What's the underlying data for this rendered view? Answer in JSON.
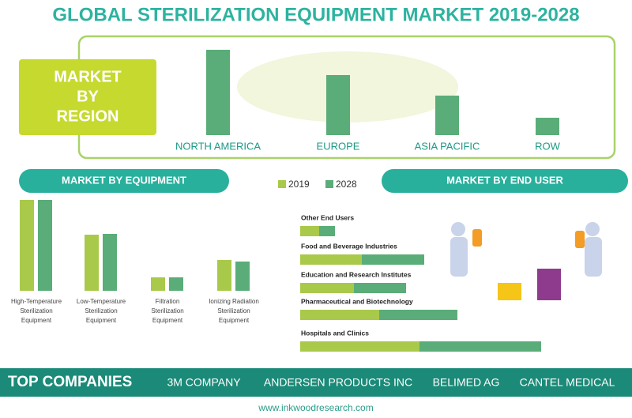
{
  "title": "GLOBAL STERILIZATION EQUIPMENT MARKET  2019-2028",
  "region_label": [
    "MARKET",
    "BY",
    "REGION"
  ],
  "equipment_header": "MARKET BY EQUIPMENT",
  "end_user_header": "MARKET BY END USER",
  "chart_data": [
    {
      "type": "bar",
      "categories": [
        "NORTH AMERICA",
        "EUROPE",
        "ASIA PACIFIC",
        "ROW"
      ],
      "values": [
        108,
        76,
        50,
        22
      ],
      "color": "#5aad78"
    },
    {
      "type": "grouped-bar",
      "categories": [
        [
          "High-Temperature",
          "Sterilization",
          "Equipment"
        ],
        [
          "Low-Temperature",
          "Sterilization",
          "Equipment"
        ],
        [
          "Filtration",
          "Sterilization",
          "Equipment"
        ],
        [
          "Ionizing Radiation",
          "Sterilization",
          "Equipment"
        ]
      ],
      "series": [
        {
          "name": "2019",
          "color": "#a9c94b",
          "values": [
            115,
            71,
            17,
            39
          ]
        },
        {
          "name": "2028",
          "color": "#5aad78",
          "values": [
            115,
            72,
            17,
            37
          ]
        }
      ]
    },
    {
      "type": "stacked-hbar",
      "categories": [
        "Other End Users",
        "Food and Beverage Industries",
        "Education and Research Institutes",
        "Pharmaceutical and Biotechnology",
        "Hospitals and Clinics"
      ],
      "series": [
        {
          "color": "#a9c94b",
          "values": [
            24,
            78,
            68,
            100,
            151
          ]
        },
        {
          "color": "#5aad78",
          "values": [
            20,
            79,
            66,
            99,
            154
          ]
        }
      ]
    }
  ],
  "top_companies": {
    "label": "TOP COMPANIES",
    "companies": [
      "3M COMPANY",
      "ANDERSEN PRODUCTS INC",
      "BELIMED AG",
      "CANTEL MEDICAL"
    ]
  },
  "website": "www.inkwoodresearch.com"
}
